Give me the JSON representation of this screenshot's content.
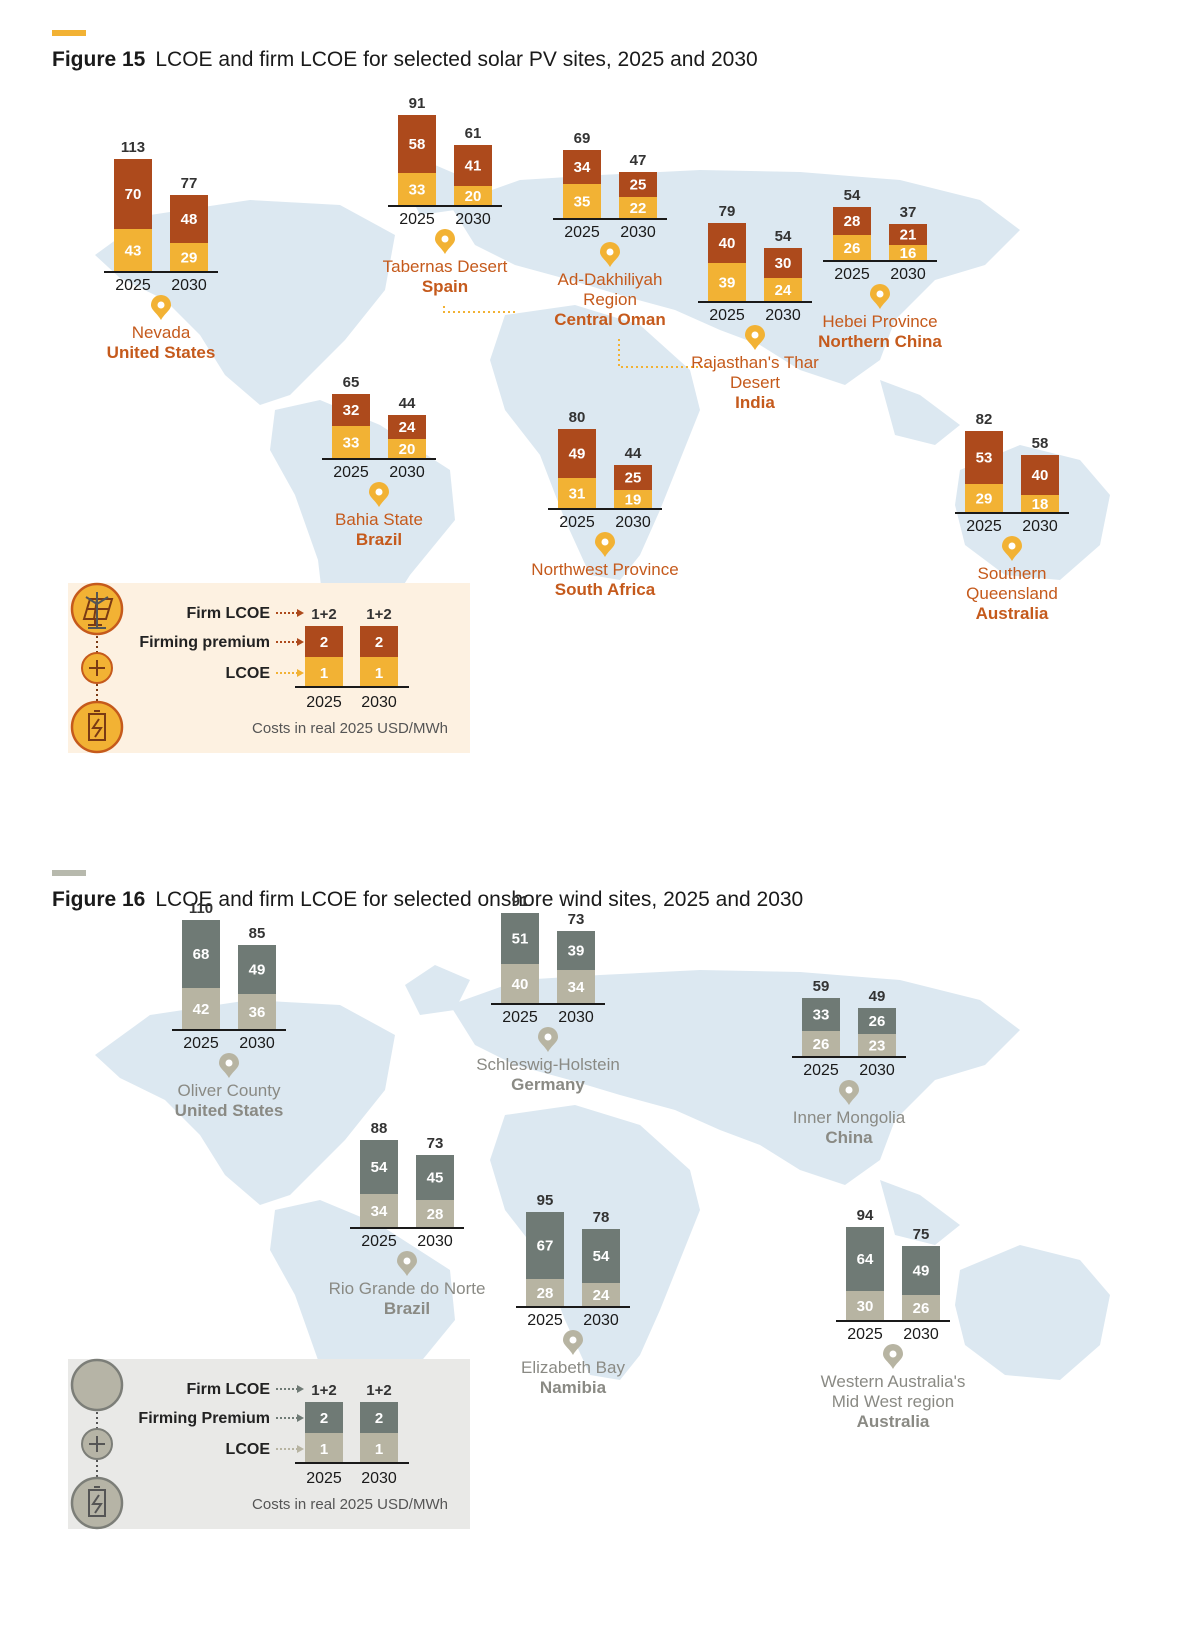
{
  "figures": [
    {
      "number": "Figure 15",
      "title": "LCOE and firm LCOE for selected solar PV sites, 2025 and 2030",
      "accent_color": "#f2b234"
    },
    {
      "number": "Figure 16",
      "title": "LCOE and firm LCOE for selected onshore wind sites, 2025 and 2030",
      "accent_color": "#b7b9ad"
    }
  ],
  "chart_data": [
    {
      "type": "bar",
      "stacked": true,
      "title": "LCOE and firm LCOE for selected solar PV sites, 2025 and 2030",
      "units": "Costs in real 2025 USD/MWh",
      "categories": [
        "2025",
        "2030"
      ],
      "colors": {
        "lcoe": "#f2b234",
        "premium": "#ad4a1c",
        "place": "#c55a1c",
        "pin": "#f2b234"
      },
      "sites": [
        {
          "place": "Nevada",
          "country": "United States",
          "lcoe": [
            43,
            29
          ],
          "premium": [
            70,
            48
          ],
          "total": [
            113,
            77
          ]
        },
        {
          "place": "Tabernas Desert",
          "country": "Spain",
          "lcoe": [
            33,
            20
          ],
          "premium": [
            58,
            41
          ],
          "total": [
            91,
            61
          ]
        },
        {
          "place": "Ad-Dakhiliyah Region",
          "country": "Central Oman",
          "lcoe": [
            35,
            22
          ],
          "premium": [
            34,
            25
          ],
          "total": [
            69,
            47
          ]
        },
        {
          "place": "Rajasthan's Thar Desert",
          "country": "India",
          "lcoe": [
            39,
            24
          ],
          "premium": [
            40,
            30
          ],
          "total": [
            79,
            54
          ]
        },
        {
          "place": "Hebei Province",
          "country": "Northern China",
          "lcoe": [
            26,
            16
          ],
          "premium": [
            28,
            21
          ],
          "total": [
            54,
            37
          ]
        },
        {
          "place": "Bahia State",
          "country": "Brazil",
          "lcoe": [
            33,
            20
          ],
          "premium": [
            32,
            24
          ],
          "total": [
            65,
            44
          ]
        },
        {
          "place": "Northwest Province",
          "country": "South Africa",
          "lcoe": [
            31,
            19
          ],
          "premium": [
            49,
            25
          ],
          "total": [
            80,
            44
          ]
        },
        {
          "place": "Southern Queensland",
          "country": "Australia",
          "lcoe": [
            29,
            18
          ],
          "premium": [
            53,
            40
          ],
          "total": [
            82,
            58
          ]
        }
      ],
      "legend": {
        "firm_label": "Firm LCOE",
        "premium_label": "Firming premium",
        "lcoe_label": "LCOE",
        "firm_value": "1+2",
        "premium_value": "2",
        "lcoe_value": "1",
        "years": [
          "2025",
          "2030"
        ],
        "units": "Costs in real 2025 USD/MWh"
      }
    },
    {
      "type": "bar",
      "stacked": true,
      "title": "LCOE and firm LCOE for selected onshore wind sites, 2025 and 2030",
      "units": "Costs in real 2025 USD/MWh",
      "categories": [
        "2025",
        "2030"
      ],
      "colors": {
        "lcoe": "#b7b4a2",
        "premium": "#6f7a75",
        "place": "#8a8a84",
        "pin": "#b7b4a2"
      },
      "sites": [
        {
          "place": "Oliver County",
          "country": "United States",
          "lcoe": [
            42,
            36
          ],
          "premium": [
            68,
            49
          ],
          "total": [
            110,
            85
          ]
        },
        {
          "place": "Schleswig-Holstein",
          "country": "Germany",
          "lcoe": [
            40,
            34
          ],
          "premium": [
            51,
            39
          ],
          "total": [
            91,
            73
          ]
        },
        {
          "place": "Inner Mongolia",
          "country": "China",
          "lcoe": [
            26,
            23
          ],
          "premium": [
            33,
            26
          ],
          "total": [
            59,
            49
          ]
        },
        {
          "place": "Rio Grande do Norte",
          "country": "Brazil",
          "lcoe": [
            34,
            28
          ],
          "premium": [
            54,
            45
          ],
          "total": [
            88,
            73
          ]
        },
        {
          "place": "Elizabeth Bay",
          "country": "Namibia",
          "lcoe": [
            28,
            24
          ],
          "premium": [
            67,
            54
          ],
          "total": [
            95,
            78
          ]
        },
        {
          "place": "Western Australia's Mid West region",
          "country": "Australia",
          "lcoe": [
            30,
            26
          ],
          "premium": [
            64,
            49
          ],
          "total": [
            94,
            75
          ]
        }
      ],
      "legend": {
        "firm_label": "Firm LCOE",
        "premium_label": "Firming Premium",
        "lcoe_label": "LCOE",
        "firm_value": "1+2",
        "premium_value": "2",
        "lcoe_value": "1",
        "years": [
          "2025",
          "2030"
        ],
        "units": "Costs in real 2025 USD/MWh"
      }
    }
  ]
}
